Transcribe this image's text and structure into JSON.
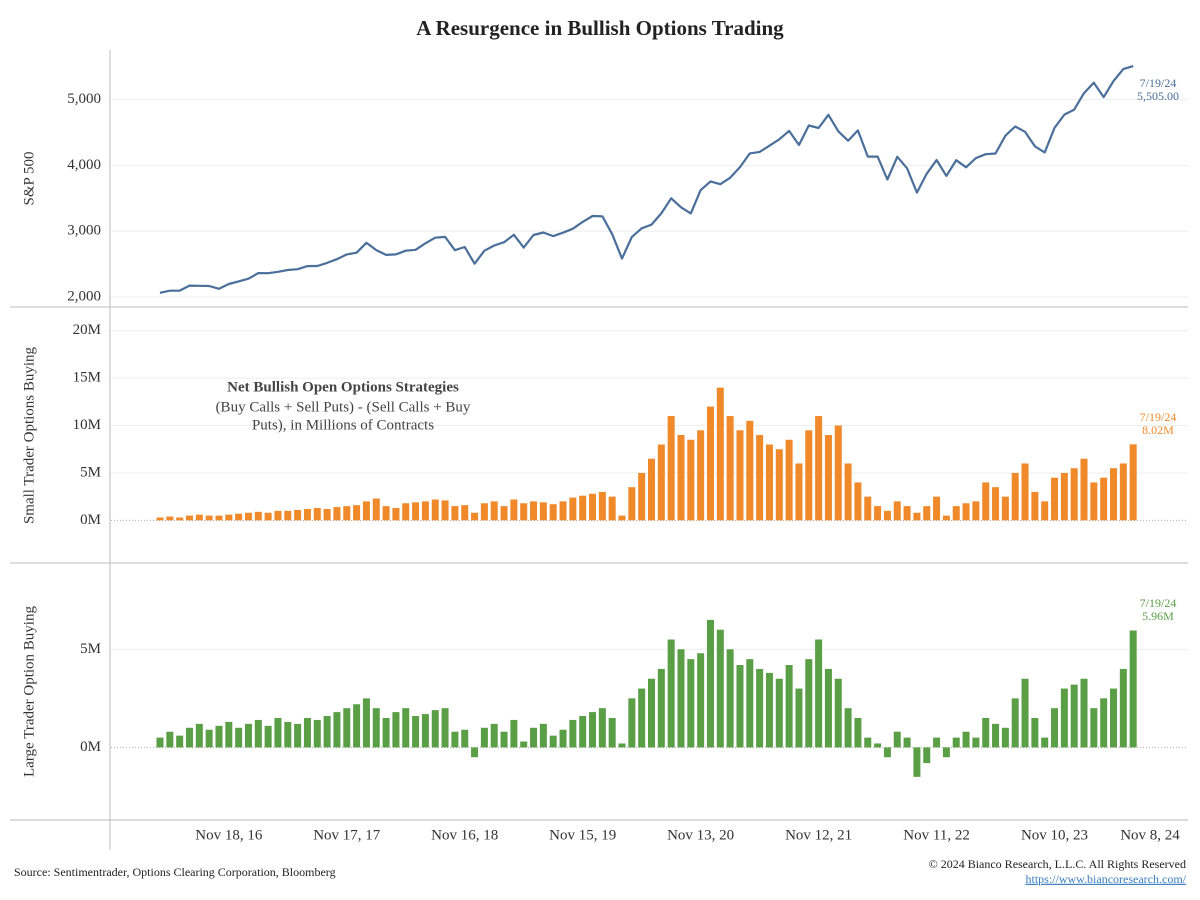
{
  "title": "A Resurgence in Bullish Options Trading",
  "source": "Source: Sentimentrader, Options Clearing Corporation, Bloomberg",
  "copyright": "© 2024 Bianco Research, L.L.C. All Rights Reserved",
  "url": "https://www.biancoresearch.com/",
  "chart_data": [
    {
      "type": "line",
      "ylabel": "S&P 500",
      "ylim": [
        1850,
        5750
      ],
      "yticks": [
        {
          "value": 2000,
          "label": "2,000"
        },
        {
          "value": 3000,
          "label": "3,000"
        },
        {
          "value": 4000,
          "label": "4,000"
        },
        {
          "value": 5000,
          "label": "5,000"
        }
      ],
      "grid": true,
      "color": "#4a6f9a",
      "values": [
        2065,
        2097,
        2099,
        2174,
        2171,
        2168,
        2126,
        2199,
        2239,
        2279,
        2364,
        2363,
        2384,
        2412,
        2423,
        2470,
        2472,
        2519,
        2575,
        2648,
        2674,
        2824,
        2714,
        2641,
        2648,
        2705,
        2718,
        2816,
        2902,
        2914,
        2712,
        2760,
        2507,
        2704,
        2784,
        2834,
        2946,
        2752,
        2942,
        2980,
        2926,
        2977,
        3038,
        3141,
        3231,
        3226,
        2954,
        2585,
        2912,
        3044,
        3100,
        3271,
        3500,
        3363,
        3270,
        3622,
        3756,
        3714,
        3811,
        3973,
        4181,
        4204,
        4298,
        4395,
        4523,
        4308,
        4605,
        4567,
        4766,
        4516,
        4374,
        4530,
        4132,
        4132,
        3785,
        4130,
        3955,
        3586,
        3872,
        4080,
        3840,
        4077,
        3970,
        4109,
        4169,
        4180,
        4450,
        4589,
        4508,
        4288,
        4194,
        4568,
        4770,
        4846,
        5096,
        5254,
        5036,
        5278,
        5460,
        5505,
        null,
        null,
        null,
        null
      ],
      "annotation": {
        "date": "7/19/24",
        "label": "5,505.00"
      }
    },
    {
      "type": "bar",
      "ylabel": "Small Trader Options Buying",
      "ylim": [
        -4.5,
        22.4
      ],
      "yticks": [
        {
          "value": 0,
          "label": "0M"
        },
        {
          "value": 5,
          "label": "5M"
        },
        {
          "value": 10,
          "label": "10M"
        },
        {
          "value": 15,
          "label": "15M"
        },
        {
          "value": 20,
          "label": "20M"
        }
      ],
      "grid": true,
      "color": "#f0892a",
      "values": [
        0.3,
        0.4,
        0.3,
        0.5,
        0.6,
        0.5,
        0.5,
        0.6,
        0.7,
        0.8,
        0.9,
        0.8,
        1.0,
        1.0,
        1.1,
        1.2,
        1.3,
        1.2,
        1.4,
        1.5,
        1.6,
        2.0,
        2.3,
        1.5,
        1.3,
        1.8,
        1.9,
        2.0,
        2.2,
        2.1,
        1.5,
        1.6,
        0.8,
        1.8,
        2.0,
        1.5,
        2.2,
        1.8,
        2.0,
        1.9,
        1.7,
        2.0,
        2.4,
        2.6,
        2.8,
        3.0,
        2.5,
        0.5,
        3.5,
        5.0,
        6.5,
        8.0,
        11.0,
        9.0,
        8.5,
        9.5,
        12.0,
        14.0,
        11.0,
        9.5,
        10.5,
        9.0,
        8.0,
        7.5,
        8.5,
        6.0,
        9.5,
        11.0,
        9.0,
        10.0,
        6.0,
        4.0,
        2.5,
        1.5,
        1.0,
        2.0,
        1.5,
        0.8,
        1.5,
        2.5,
        0.5,
        1.5,
        1.8,
        2.0,
        4.0,
        3.5,
        2.5,
        5.0,
        6.0,
        3.0,
        2.0,
        4.5,
        5.0,
        5.5,
        6.5,
        4.0,
        4.5,
        5.5,
        6.0,
        8.02,
        null,
        null,
        null,
        null
      ],
      "annotation": {
        "date": "7/19/24",
        "label": "8.02M"
      },
      "note": {
        "title": "Net Bullish Open Options Strategies",
        "lines": [
          "(Buy Calls + Sell Puts) - (Sell Calls + Buy",
          "Puts), in Millions of Contracts"
        ]
      }
    },
    {
      "type": "bar",
      "ylabel": "Large Trader Option Buying",
      "ylim": [
        -3.7,
        9.4
      ],
      "yticks": [
        {
          "value": 0,
          "label": "0M"
        },
        {
          "value": 5,
          "label": "5M"
        }
      ],
      "grid": true,
      "color": "#5a9e46",
      "values": [
        0.5,
        0.8,
        0.6,
        1.0,
        1.2,
        0.9,
        1.1,
        1.3,
        1.0,
        1.2,
        1.4,
        1.1,
        1.5,
        1.3,
        1.2,
        1.5,
        1.4,
        1.6,
        1.8,
        2.0,
        2.2,
        2.5,
        2.0,
        1.5,
        1.8,
        2.0,
        1.6,
        1.7,
        1.9,
        2.0,
        0.8,
        0.9,
        -0.5,
        1.0,
        1.2,
        0.8,
        1.4,
        0.3,
        1.0,
        1.2,
        0.6,
        0.9,
        1.4,
        1.6,
        1.8,
        2.0,
        1.5,
        0.2,
        2.5,
        3.0,
        3.5,
        4.0,
        5.5,
        5.0,
        4.5,
        4.8,
        6.5,
        6.0,
        5.0,
        4.2,
        4.5,
        4.0,
        3.8,
        3.5,
        4.2,
        3.0,
        4.5,
        5.5,
        4.0,
        3.5,
        2.0,
        1.5,
        0.5,
        0.2,
        -0.5,
        0.8,
        0.5,
        -1.5,
        -0.8,
        0.5,
        -0.5,
        0.5,
        0.8,
        0.5,
        1.5,
        1.2,
        1.0,
        2.5,
        3.5,
        1.5,
        0.5,
        2.0,
        3.0,
        3.2,
        3.5,
        2.0,
        2.5,
        3.0,
        4.0,
        5.96,
        null,
        null,
        null,
        null
      ],
      "annotation": {
        "date": "7/19/24",
        "label": "5.96M"
      },
      "categories": [
        null,
        null,
        null,
        null,
        null,
        null,
        null,
        "Nov 18, 16",
        null,
        null,
        null,
        null,
        null,
        null,
        null,
        null,
        null,
        null,
        null,
        "Nov 17, 17",
        null,
        null,
        null,
        null,
        null,
        null,
        null,
        null,
        null,
        null,
        null,
        "Nov 16, 18",
        null,
        null,
        null,
        null,
        null,
        null,
        null,
        null,
        null,
        null,
        null,
        "Nov 15, 19",
        null,
        null,
        null,
        null,
        null,
        null,
        null,
        null,
        null,
        null,
        null,
        "Nov 13, 20",
        null,
        null,
        null,
        null,
        null,
        null,
        null,
        null,
        null,
        null,
        null,
        "Nov 12, 21",
        null,
        null,
        null,
        null,
        null,
        null,
        null,
        null,
        null,
        null,
        null,
        "Nov 11, 22",
        null,
        null,
        null,
        null,
        null,
        null,
        null,
        null,
        null,
        null,
        null,
        "Nov 10, 23",
        null,
        null,
        null,
        null,
        null,
        null,
        null,
        null,
        null,
        null,
        null,
        "Nov 8, 24"
      ]
    }
  ]
}
